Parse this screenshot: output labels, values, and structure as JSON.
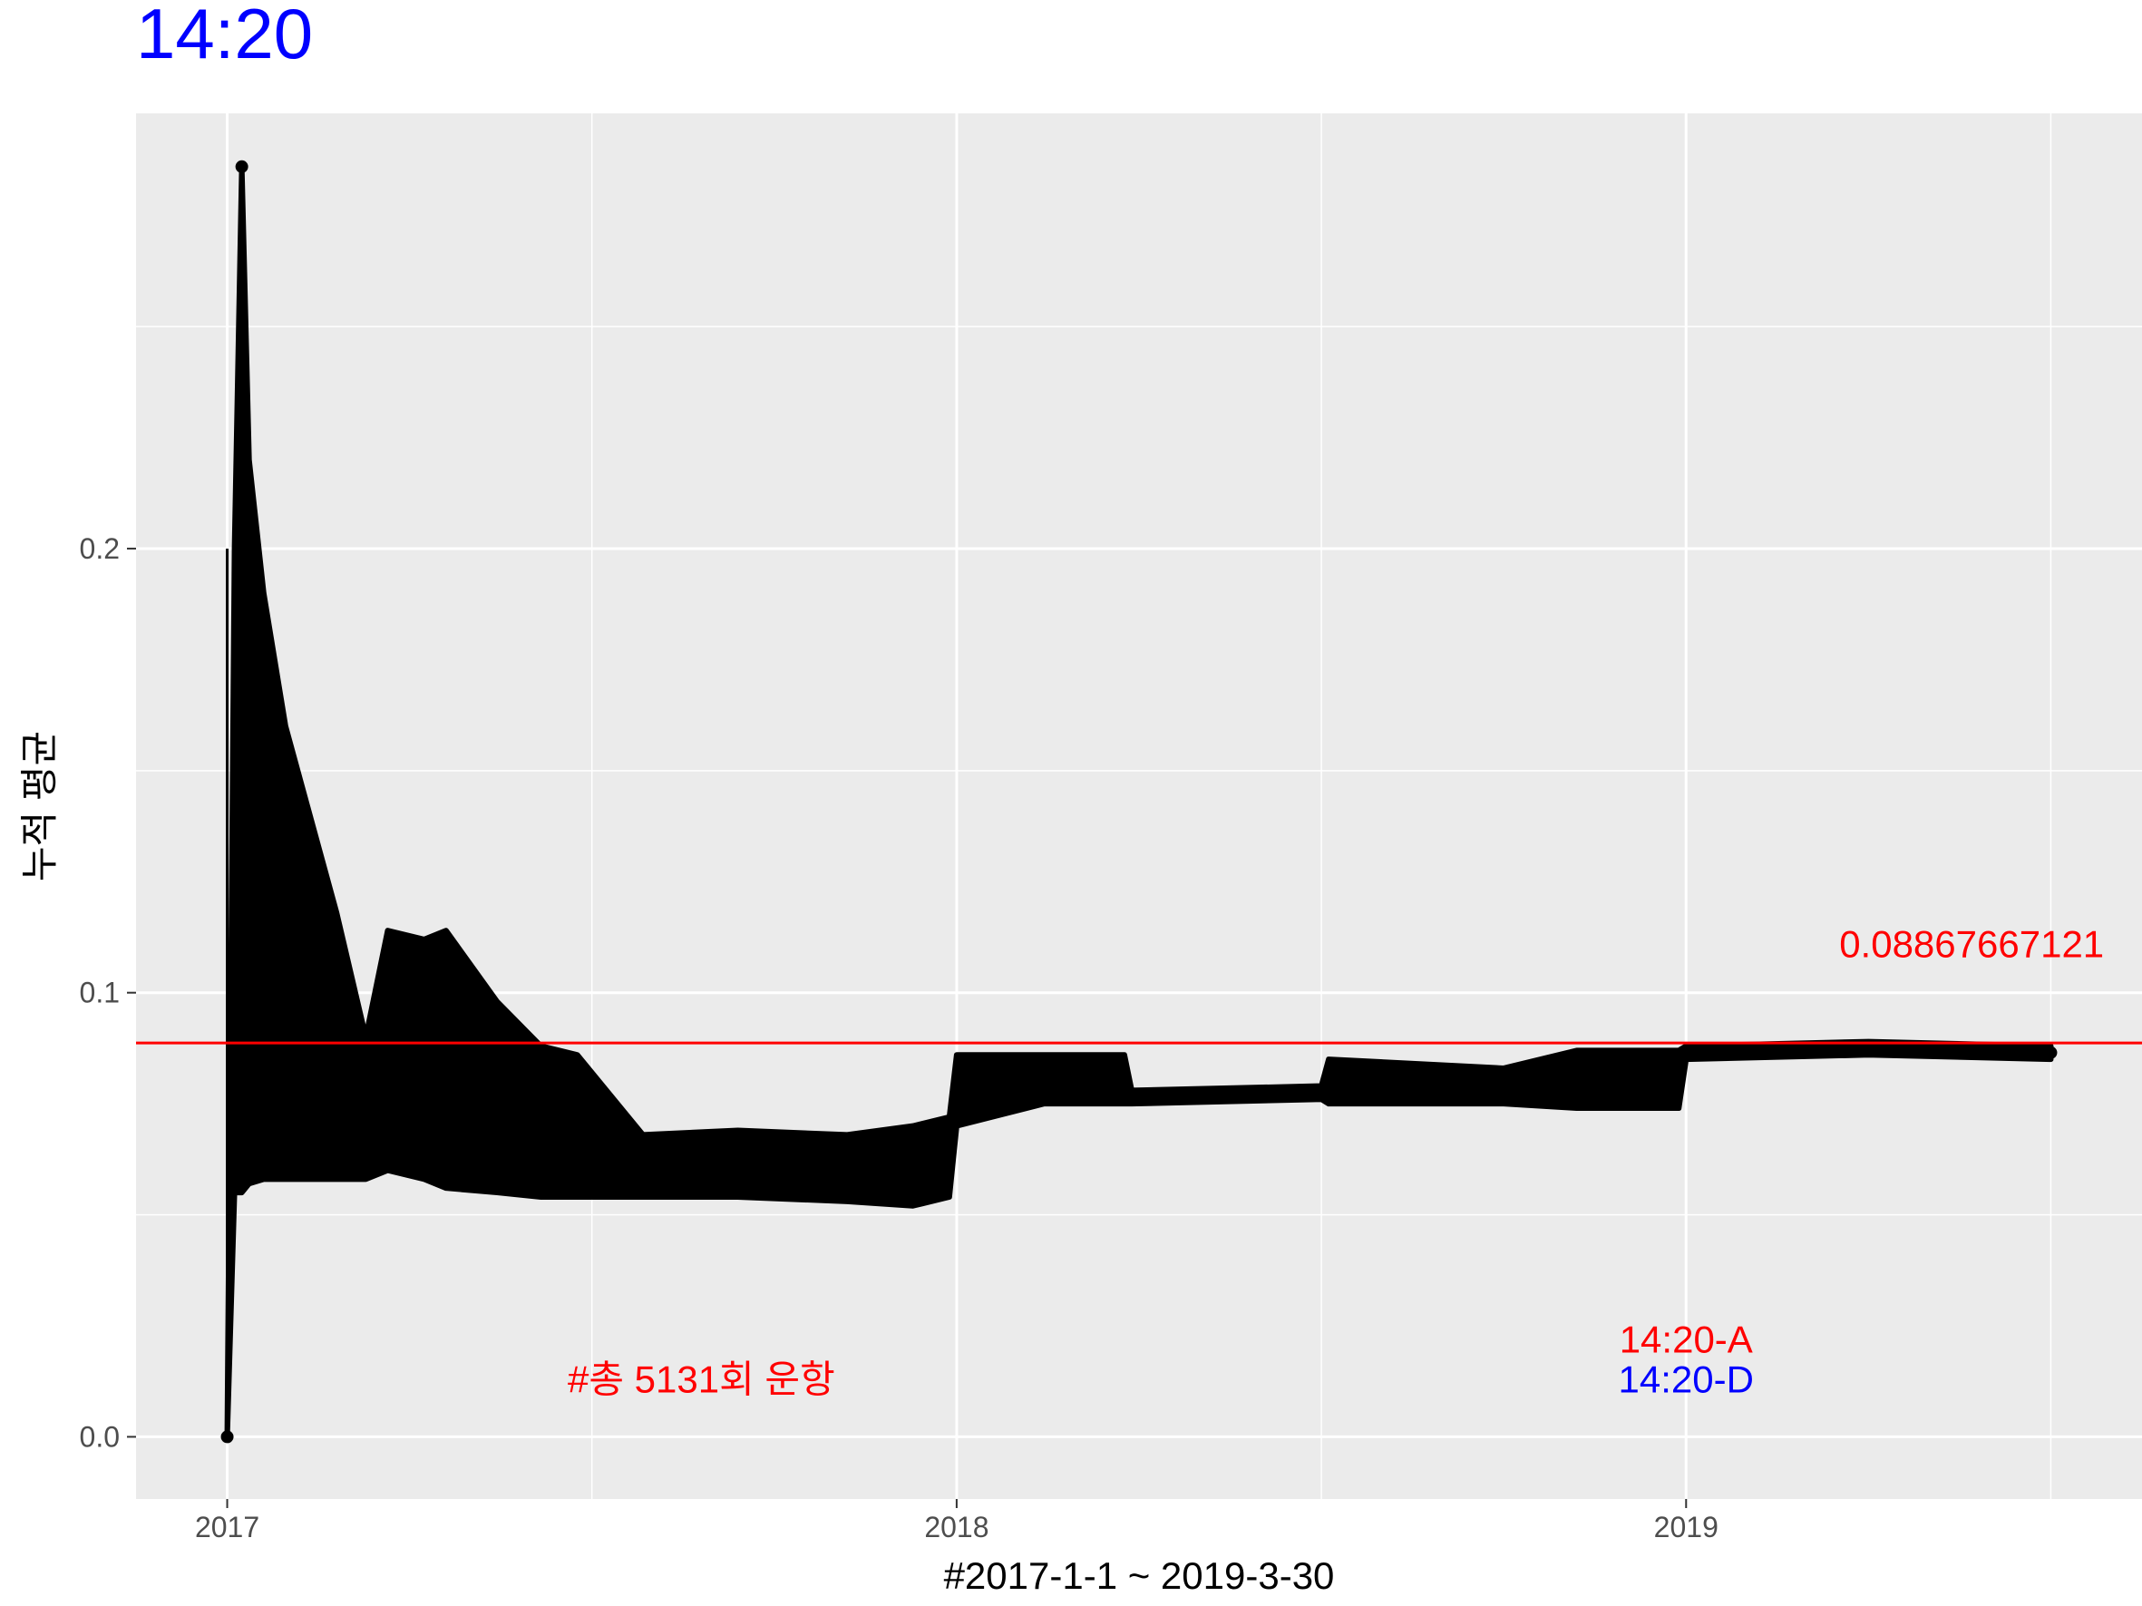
{
  "chart_data": {
    "type": "line",
    "title": "14:20",
    "xlabel": "#2017-1-1 ~ 2019-3-30",
    "ylabel": "누적 평균",
    "x_domain": [
      2016.875,
      2019.625
    ],
    "ylim": [
      -0.014,
      0.298
    ],
    "x_ticks": [
      {
        "value": 2017,
        "label": "2017"
      },
      {
        "value": 2018,
        "label": "2018"
      },
      {
        "value": 2019,
        "label": "2019"
      }
    ],
    "x_minor_ticks": [
      2017.5,
      2018.5,
      2019.5
    ],
    "y_ticks": [
      {
        "value": 0.0,
        "label": "0.0"
      },
      {
        "value": 0.1,
        "label": "0.1"
      },
      {
        "value": 0.2,
        "label": "0.2"
      }
    ],
    "y_minor_ticks": [
      0.05,
      0.15,
      0.25
    ],
    "grid": true,
    "series": [
      {
        "name": "누적 평균",
        "color": "#000000",
        "band": [
          {
            "x": 2017.0,
            "low": 0.0,
            "high": 0.0
          },
          {
            "x": 2017.01,
            "low": 0.055,
            "high": 0.2
          },
          {
            "x": 2017.02,
            "low": 0.055,
            "high": 0.286
          },
          {
            "x": 2017.03,
            "low": 0.057,
            "high": 0.22
          },
          {
            "x": 2017.05,
            "low": 0.058,
            "high": 0.19
          },
          {
            "x": 2017.08,
            "low": 0.058,
            "high": 0.16
          },
          {
            "x": 2017.11,
            "low": 0.058,
            "high": 0.142
          },
          {
            "x": 2017.15,
            "low": 0.058,
            "high": 0.118
          },
          {
            "x": 2017.19,
            "low": 0.058,
            "high": 0.09
          },
          {
            "x": 2017.22,
            "low": 0.06,
            "high": 0.114
          },
          {
            "x": 2017.27,
            "low": 0.058,
            "high": 0.112
          },
          {
            "x": 2017.3,
            "low": 0.056,
            "high": 0.114
          },
          {
            "x": 2017.37,
            "low": 0.055,
            "high": 0.098
          },
          {
            "x": 2017.43,
            "low": 0.054,
            "high": 0.088
          },
          {
            "x": 2017.48,
            "low": 0.054,
            "high": 0.086
          },
          {
            "x": 2017.57,
            "low": 0.054,
            "high": 0.068
          },
          {
            "x": 2017.7,
            "low": 0.054,
            "high": 0.069
          },
          {
            "x": 2017.85,
            "low": 0.053,
            "high": 0.068
          },
          {
            "x": 2017.94,
            "low": 0.052,
            "high": 0.07
          },
          {
            "x": 2017.99,
            "low": 0.054,
            "high": 0.072
          },
          {
            "x": 2018.0,
            "low": 0.07,
            "high": 0.086
          },
          {
            "x": 2018.12,
            "low": 0.075,
            "high": 0.086
          },
          {
            "x": 2018.23,
            "low": 0.075,
            "high": 0.086
          },
          {
            "x": 2018.24,
            "low": 0.075,
            "high": 0.078
          },
          {
            "x": 2018.5,
            "low": 0.076,
            "high": 0.079
          },
          {
            "x": 2018.51,
            "low": 0.075,
            "high": 0.085
          },
          {
            "x": 2018.75,
            "low": 0.075,
            "high": 0.083
          },
          {
            "x": 2018.85,
            "low": 0.074,
            "high": 0.087
          },
          {
            "x": 2018.99,
            "low": 0.074,
            "high": 0.087
          },
          {
            "x": 2019.0,
            "low": 0.085,
            "high": 0.088
          },
          {
            "x": 2019.25,
            "low": 0.086,
            "high": 0.089
          },
          {
            "x": 2019.5,
            "low": 0.085,
            "high": 0.088
          }
        ]
      }
    ],
    "reference_line": {
      "y": 0.08867667121,
      "color": "#ff0000"
    },
    "annotations": [
      {
        "text": "0.08867667121",
        "x": 2019.21,
        "y": 0.108,
        "color": "#ff0000",
        "anchor": "start"
      },
      {
        "text": "#총 5131회 운항",
        "x": 2017.65,
        "y": 0.01,
        "color": "#ff0000",
        "anchor": "middle"
      },
      {
        "text": "14:20-A",
        "x": 2019.0,
        "y": 0.019,
        "color": "#ff0000",
        "anchor": "middle"
      },
      {
        "text": "14:20-D",
        "x": 2019.0,
        "y": 0.01,
        "color": "#0000ff",
        "anchor": "middle"
      }
    ],
    "title_color": "#0000ff"
  }
}
